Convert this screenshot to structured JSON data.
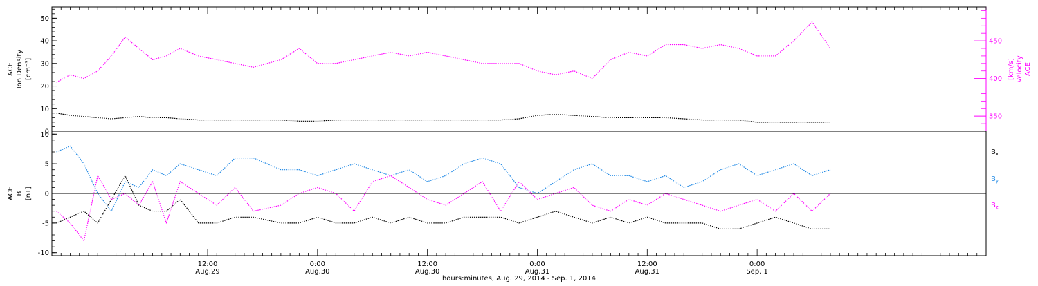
{
  "colors": {
    "black": "#000000",
    "magenta": "#ff00ff",
    "blue": "#1e88e5"
  },
  "chart_data": [
    {
      "id": "top-panel",
      "type": "scatter",
      "left_axis": {
        "label_lines": [
          "ACE",
          "Ion Density",
          "[cm⁻³]"
        ],
        "ylim": [
          0,
          55
        ],
        "ticks": [
          0,
          10,
          20,
          30,
          40,
          50
        ],
        "tick_labels": [
          "0",
          "10",
          "20",
          "30",
          "40",
          "50"
        ]
      },
      "right_axis": {
        "label_lines": [
          "ACE",
          "Velocity",
          "[km/s]"
        ],
        "ylim": [
          330,
          495
        ],
        "ticks": [
          350,
          400,
          450
        ],
        "tick_labels": [
          "350",
          "400",
          "450"
        ]
      },
      "series": [
        {
          "key": "density",
          "axis": "left",
          "color": "#000000",
          "x_hours": [
            -4.5,
            -3,
            -1.5,
            0,
            1.5,
            3,
            4.5,
            6,
            7.5,
            9,
            11,
            13,
            15,
            17,
            20,
            22,
            24,
            26,
            28,
            30,
            32,
            34,
            36,
            38,
            40,
            42,
            44,
            46,
            48,
            50,
            52,
            54,
            56,
            58,
            60,
            62,
            64,
            66,
            68,
            70,
            72,
            74,
            76,
            78,
            80
          ],
          "values": [
            8,
            7,
            6.5,
            6,
            5.5,
            6,
            6.5,
            6,
            6,
            5.5,
            5,
            5,
            5,
            5,
            5,
            4.5,
            4.5,
            5,
            5,
            5,
            5,
            5,
            5,
            5,
            5,
            5,
            5,
            5.5,
            7,
            7.5,
            7,
            6.5,
            6,
            6,
            6,
            6,
            5.5,
            5,
            5,
            5,
            4,
            4,
            4,
            4,
            4
          ]
        },
        {
          "key": "velocity",
          "axis": "right",
          "color": "#ff00ff",
          "x_hours": [
            -4.5,
            -3,
            -1.5,
            0,
            1.5,
            3,
            4.5,
            6,
            7.5,
            9,
            11,
            13,
            15,
            17,
            20,
            22,
            24,
            26,
            28,
            30,
            32,
            34,
            36,
            38,
            40,
            42,
            44,
            46,
            48,
            50,
            52,
            54,
            56,
            58,
            60,
            62,
            64,
            66,
            68,
            70,
            72,
            74,
            76,
            78,
            80
          ],
          "values": [
            395,
            405,
            400,
            410,
            430,
            455,
            440,
            425,
            430,
            440,
            430,
            425,
            420,
            415,
            425,
            440,
            420,
            420,
            425,
            430,
            435,
            430,
            435,
            430,
            425,
            420,
            420,
            420,
            410,
            405,
            410,
            400,
            425,
            435,
            430,
            445,
            445,
            440,
            445,
            440,
            430,
            430,
            450,
            475,
            440
          ]
        }
      ]
    },
    {
      "id": "bottom-panel",
      "type": "scatter",
      "left_axis": {
        "label_lines": [
          "ACE",
          "B",
          "[nT]"
        ],
        "ylim": [
          -10.5,
          10.5
        ],
        "ticks": [
          -10,
          -5,
          0,
          5,
          10
        ],
        "tick_labels": [
          "-10",
          "-5",
          "0",
          "5",
          "10"
        ]
      },
      "zero_line": true,
      "series": [
        {
          "key": "bx",
          "name": "B",
          "subscript": "x",
          "color": "#000000",
          "x_hours": [
            -4.5,
            -3,
            -1.5,
            0,
            1.5,
            3,
            4.5,
            6,
            7.5,
            9,
            11,
            13,
            15,
            17,
            20,
            22,
            24,
            26,
            28,
            30,
            32,
            34,
            36,
            38,
            40,
            42,
            44,
            46,
            48,
            50,
            52,
            54,
            56,
            58,
            60,
            62,
            64,
            66,
            68,
            70,
            72,
            74,
            76,
            78,
            80
          ],
          "values": [
            -5,
            -4,
            -3,
            -5,
            -1,
            3,
            -2,
            -3,
            -3,
            -1,
            -5,
            -5,
            -4,
            -4,
            -5,
            -5,
            -4,
            -5,
            -5,
            -4,
            -5,
            -4,
            -5,
            -5,
            -4,
            -4,
            -4,
            -5,
            -4,
            -3,
            -4,
            -5,
            -4,
            -5,
            -4,
            -5,
            -5,
            -5,
            -6,
            -6,
            -5,
            -4,
            -5,
            -6,
            -6
          ]
        },
        {
          "key": "by",
          "name": "B",
          "subscript": "y",
          "color": "#1e88e5",
          "x_hours": [
            -4.5,
            -3,
            -1.5,
            0,
            1.5,
            3,
            4.5,
            6,
            7.5,
            9,
            11,
            13,
            15,
            17,
            20,
            22,
            24,
            26,
            28,
            30,
            32,
            34,
            36,
            38,
            40,
            42,
            44,
            46,
            48,
            50,
            52,
            54,
            56,
            58,
            60,
            62,
            64,
            66,
            68,
            70,
            72,
            74,
            76,
            78,
            80
          ],
          "values": [
            7,
            8,
            5,
            0,
            -3,
            2,
            1,
            4,
            3,
            5,
            4,
            3,
            6,
            6,
            4,
            4,
            3,
            4,
            5,
            4,
            3,
            4,
            2,
            3,
            5,
            6,
            5,
            1,
            0,
            2,
            4,
            5,
            3,
            3,
            2,
            3,
            1,
            2,
            4,
            5,
            3,
            4,
            5,
            3,
            4
          ]
        },
        {
          "key": "bz",
          "name": "B",
          "subscript": "z",
          "color": "#ff00ff",
          "x_hours": [
            -4.5,
            -3,
            -1.5,
            0,
            1.5,
            3,
            4.5,
            6,
            7.5,
            9,
            11,
            13,
            15,
            17,
            20,
            22,
            24,
            26,
            28,
            30,
            32,
            34,
            36,
            38,
            40,
            42,
            44,
            46,
            48,
            50,
            52,
            54,
            56,
            58,
            60,
            62,
            64,
            66,
            68,
            70,
            72,
            74,
            76,
            78,
            80
          ],
          "values": [
            -3,
            -5,
            -8,
            3,
            -1,
            0,
            -2,
            2,
            -5,
            2,
            0,
            -2,
            1,
            -3,
            -2,
            0,
            1,
            0,
            -3,
            2,
            3,
            1,
            -1,
            -2,
            0,
            2,
            -3,
            2,
            -1,
            0,
            1,
            -2,
            -3,
            -1,
            -2,
            0,
            -1,
            -2,
            -3,
            -2,
            -1,
            -3,
            0,
            -3,
            0
          ]
        }
      ]
    }
  ],
  "x_axis": {
    "hours_range": [
      -5,
      97
    ],
    "minor_tick_step": 1,
    "ticks": [
      {
        "hours": 12,
        "time": "12:00",
        "date": "Aug.29"
      },
      {
        "hours": 24,
        "time": "0:00",
        "date": "Aug.30"
      },
      {
        "hours": 36,
        "time": "12:00",
        "date": "Aug.30"
      },
      {
        "hours": 48,
        "time": "0:00",
        "date": "Aug.31"
      },
      {
        "hours": 60,
        "time": "12:00",
        "date": "Aug.31"
      },
      {
        "hours": 72,
        "time": "0:00",
        "date": "Sep. 1"
      }
    ],
    "label": "hours:minutes, Aug. 29, 2014 - Sep.  1, 2014"
  }
}
